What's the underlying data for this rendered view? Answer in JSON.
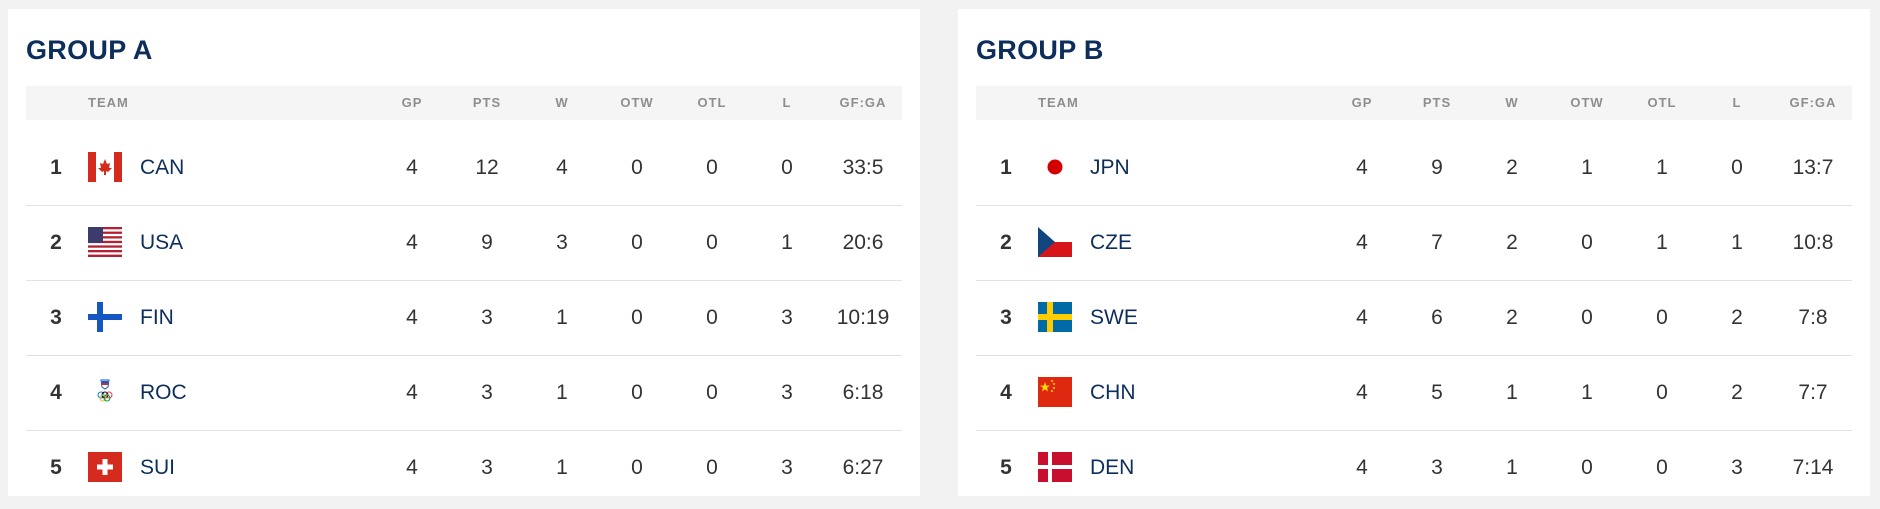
{
  "columns": {
    "team": "TEAM",
    "gp": "GP",
    "pts": "PTS",
    "w": "W",
    "otw": "OTW",
    "otl": "OTL",
    "l": "L",
    "gfga": "GF:GA"
  },
  "groups": [
    {
      "title": "GROUP A",
      "rows": [
        {
          "rank": "1",
          "team": "CAN",
          "flag": "canada-flag-icon",
          "gp": "4",
          "pts": "12",
          "w": "4",
          "otw": "0",
          "otl": "0",
          "l": "0",
          "gfga": "33:5"
        },
        {
          "rank": "2",
          "team": "USA",
          "flag": "usa-flag-icon",
          "gp": "4",
          "pts": "9",
          "w": "3",
          "otw": "0",
          "otl": "0",
          "l": "1",
          "gfga": "20:6"
        },
        {
          "rank": "3",
          "team": "FIN",
          "flag": "finland-flag-icon",
          "gp": "4",
          "pts": "3",
          "w": "1",
          "otw": "0",
          "otl": "0",
          "l": "3",
          "gfga": "10:19"
        },
        {
          "rank": "4",
          "team": "ROC",
          "flag": "roc-emblem-icon",
          "gp": "4",
          "pts": "3",
          "w": "1",
          "otw": "0",
          "otl": "0",
          "l": "3",
          "gfga": "6:18"
        },
        {
          "rank": "5",
          "team": "SUI",
          "flag": "switzerland-flag-icon",
          "gp": "4",
          "pts": "3",
          "w": "1",
          "otw": "0",
          "otl": "0",
          "l": "3",
          "gfga": "6:27"
        }
      ]
    },
    {
      "title": "GROUP B",
      "rows": [
        {
          "rank": "1",
          "team": "JPN",
          "flag": "japan-flag-icon",
          "gp": "4",
          "pts": "9",
          "w": "2",
          "otw": "1",
          "otl": "1",
          "l": "0",
          "gfga": "13:7"
        },
        {
          "rank": "2",
          "team": "CZE",
          "flag": "czechia-flag-icon",
          "gp": "4",
          "pts": "7",
          "w": "2",
          "otw": "0",
          "otl": "1",
          "l": "1",
          "gfga": "10:8"
        },
        {
          "rank": "3",
          "team": "SWE",
          "flag": "sweden-flag-icon",
          "gp": "4",
          "pts": "6",
          "w": "2",
          "otw": "0",
          "otl": "0",
          "l": "2",
          "gfga": "7:8"
        },
        {
          "rank": "4",
          "team": "CHN",
          "flag": "china-flag-icon",
          "gp": "4",
          "pts": "5",
          "w": "1",
          "otw": "1",
          "otl": "0",
          "l": "2",
          "gfga": "7:7"
        },
        {
          "rank": "5",
          "team": "DEN",
          "flag": "denmark-flag-icon",
          "gp": "4",
          "pts": "3",
          "w": "1",
          "otw": "0",
          "otl": "0",
          "l": "3",
          "gfga": "7:14"
        }
      ]
    }
  ]
}
